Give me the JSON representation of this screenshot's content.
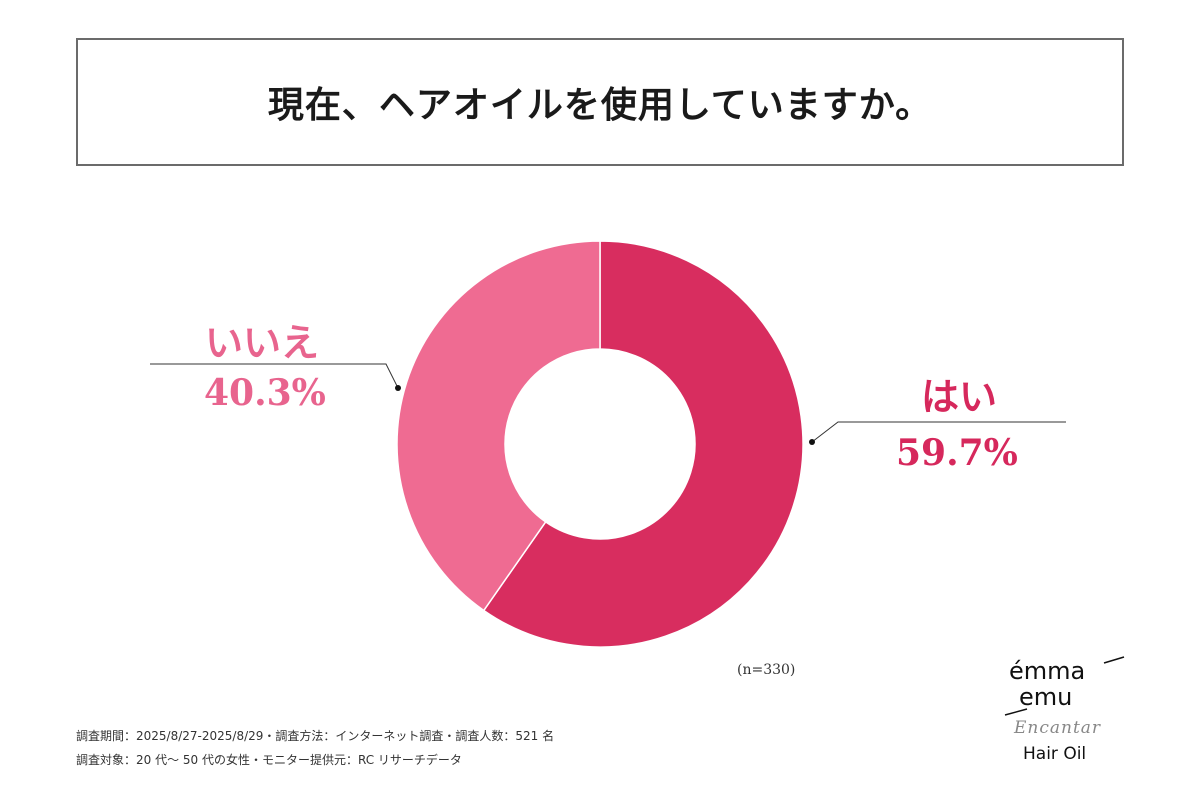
{
  "chart_data": {
    "type": "pie",
    "style": "donut",
    "title": "現在、ヘアオイルを使用していますか。",
    "categories": [
      "はい",
      "いいえ"
    ],
    "values": [
      59.7,
      40.3
    ],
    "value_labels": [
      "59.7%",
      "40.3%"
    ],
    "colors": [
      "#d82d5f",
      "#ef6b92"
    ],
    "sample_size": "(n=330)"
  },
  "footer": {
    "line1": "調査期間：2025/8/27-2025/8/29・調査方法：インターネット調査・調査人数：521 名",
    "line2": "調査対象：20 代〜 50 代の女性・モニター提供元：RC リサーチデータ"
  },
  "logo": {
    "brand_line1": "émma",
    "brand_line2": "emu",
    "script": "Encantar",
    "product": "Hair Oil"
  }
}
